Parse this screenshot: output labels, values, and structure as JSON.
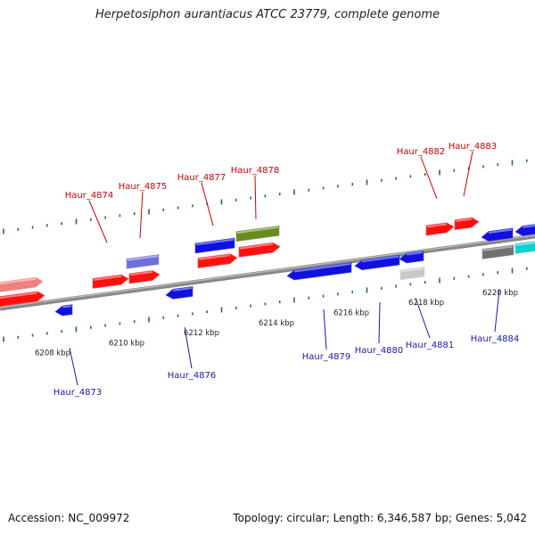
{
  "title": "Herpetosiphon aurantiacus ATCC 23779, complete genome",
  "footer": {
    "accession": "Accession: NC_009972",
    "summary": "Topology: circular; Length: 6,346,587 bp; Genes: 5,042"
  },
  "colors": {
    "top_strand_label": "#cc0000",
    "bottom_strand_label": "#1a1aaa",
    "backbone": "#888888",
    "tick": "#1f7a1f"
  },
  "ruler": {
    "unit": "kbp",
    "labels": [
      "6208 kbp",
      "6210 kbp",
      "6212 kbp",
      "6214 kbp",
      "6216 kbp",
      "6218 kbp",
      "6220 kbp"
    ]
  },
  "genes": [
    {
      "name": "Haur_4873",
      "strand": "bottom",
      "color": "#1010e0"
    },
    {
      "name": "Haur_4874",
      "strand": "top",
      "color": "#ff1010"
    },
    {
      "name": "Haur_4875",
      "strand": "top",
      "color": "#7070d8"
    },
    {
      "name": "Haur_4876",
      "strand": "bottom",
      "color": "#1010e0"
    },
    {
      "name": "Haur_4877",
      "strand": "top",
      "color": "#1010e0"
    },
    {
      "name": "Haur_4878",
      "strand": "top",
      "color": "#6a8a20"
    },
    {
      "name": "Haur_4879",
      "strand": "bottom",
      "color": "#1010e0"
    },
    {
      "name": "Haur_4880",
      "strand": "bottom",
      "color": "#1010e0"
    },
    {
      "name": "Haur_4881",
      "strand": "bottom",
      "color": "#1010e0"
    },
    {
      "name": "Haur_4882",
      "strand": "top",
      "color": "#ff1010"
    },
    {
      "name": "Haur_4883",
      "strand": "top",
      "color": "#ff1010"
    },
    {
      "name": "Haur_4884",
      "strand": "bottom",
      "color": "#1010e0"
    }
  ]
}
